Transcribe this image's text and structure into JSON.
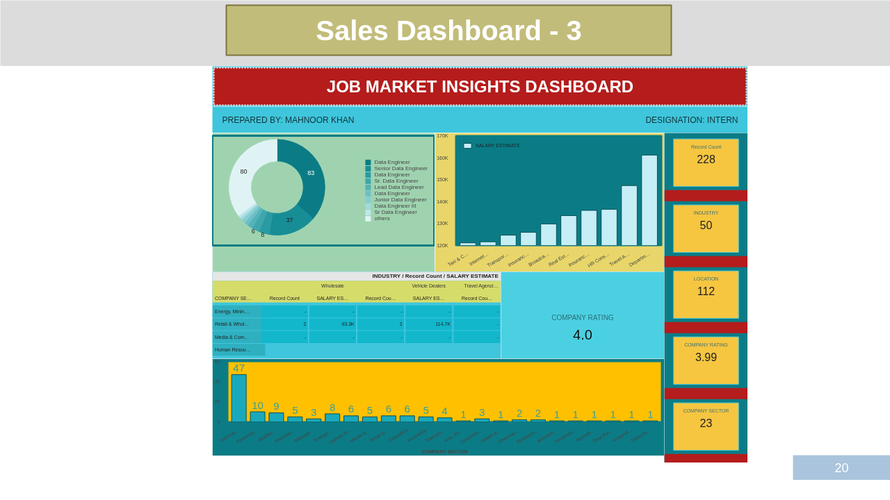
{
  "chart_data": [
    {
      "type": "other",
      "title": "Sales Dashboard - 3",
      "subtitle": "JOB MARKET INSIGHTS DASHBOARD",
      "annotations": [
        "PREPARED BY: MAHNOOR KHAN",
        "DESIGNATION: INTERN",
        "20"
      ]
    },
    {
      "type": "donut",
      "categories": [
        "Data Engineer",
        "Senior Data Engineer",
        "Data Engineer",
        "Sr. Data Engineer",
        "Lead Data Engineer",
        "Data Engineer",
        "Junior Data Engineer",
        "Data Engineer III",
        "Sr Data Engineer",
        "others"
      ],
      "values": [
        83,
        37,
        8,
        6,
        4,
        3,
        3,
        2,
        2,
        80
      ],
      "colors": [
        "#0b7c86",
        "#178d96",
        "#2a9aa3",
        "#3fa6ae",
        "#55b2b9",
        "#6cbfc5",
        "#86cdd2",
        "#a2dade",
        "#c0e7ea",
        "#dff3f5"
      ],
      "value_labels": [
        "83",
        "37",
        "8",
        "6",
        null,
        null,
        null,
        null,
        null,
        "80"
      ],
      "legend": "right"
    },
    {
      "type": "bar",
      "categories": [
        "Taxi & C…",
        "Internet…",
        "Transpor…",
        "Insuranc…",
        "Broadca…",
        "Real Est…",
        "Insuranc…",
        "HR Cons…",
        "Travel A…",
        "Departm…"
      ],
      "series": [
        {
          "name": "SALARY ESTIMATE",
          "color": "#c5eef7",
          "values": [
            121200,
            121700,
            124700,
            126000,
            129800,
            133600,
            136000,
            136500,
            147300,
            161200
          ]
        }
      ],
      "ylim": [
        120000,
        170000
      ],
      "yticks": [
        {
          "value": 120000,
          "label": "120K"
        },
        {
          "value": 130000,
          "label": "130K"
        },
        {
          "value": 140000,
          "label": "140K"
        },
        {
          "value": 150000,
          "label": "150K"
        },
        {
          "value": 160000,
          "label": "160K"
        },
        {
          "value": 170000,
          "label": "170K"
        }
      ],
      "legend": "top left"
    },
    {
      "type": "other",
      "title": "INDUSTRY / Record Count / SALARY ESTIMATE",
      "categories": [
        "COMPANY SE…",
        "Record Count",
        "SALARY ES…",
        "Record Cou…",
        "SALARY ES…",
        "Record Cou…"
      ],
      "y_categories": [
        "Energy, Minin…",
        "Retail & Whol…",
        "Media & Com…",
        "Human Resou…"
      ],
      "cell_labels": [
        [
          "-",
          "-",
          "-",
          "-",
          "-"
        ],
        [
          "2",
          "93.3K",
          "2",
          "114.7K",
          "-"
        ],
        [
          "-",
          "-",
          "-",
          "-",
          "-"
        ],
        [
          null,
          null,
          null,
          null,
          null
        ]
      ],
      "annotations": [
        "Wholesale",
        "Vehicle Dealers",
        "Travel Agenci…"
      ]
    },
    {
      "type": "other",
      "title": "COMPANY RATING",
      "annotations": [
        "4.0"
      ]
    },
    {
      "type": "bar",
      "categories": [
        "Informa…",
        "Financial…",
        "Healthc…",
        "Manufac…",
        "Manage…",
        "Energy,…",
        "Human R…",
        "Media &…",
        "Retail &…",
        "Education",
        "Insurance",
        "Transpo…",
        "Arts, En…",
        "Governm…",
        "Hotels &…",
        "Pharmac…",
        "Restaura…",
        "Aerospa…",
        "Personal…",
        "Agricult…",
        "Real Est…",
        "Nonprof…",
        "Telecom…"
      ],
      "values": [
        47,
        10,
        9,
        5,
        3,
        8,
        6,
        5,
        6,
        6,
        5,
        4,
        1,
        3,
        1,
        2,
        2,
        1,
        1,
        1,
        1,
        1,
        1
      ],
      "color": "#1aa9bc",
      "xlabel": "COMPANY SECTOR",
      "ylim": [
        0,
        60
      ],
      "yticks": [
        0,
        20,
        40,
        60
      ],
      "data_labels": true
    },
    {
      "type": "other",
      "categories": [
        "Record Count",
        "INDUSTRY",
        "LOCATION",
        "COMPANY RATING",
        "COMPANY SECTOR"
      ],
      "values": [
        228,
        50,
        112,
        3.99,
        23
      ],
      "data_labels": true
    }
  ]
}
